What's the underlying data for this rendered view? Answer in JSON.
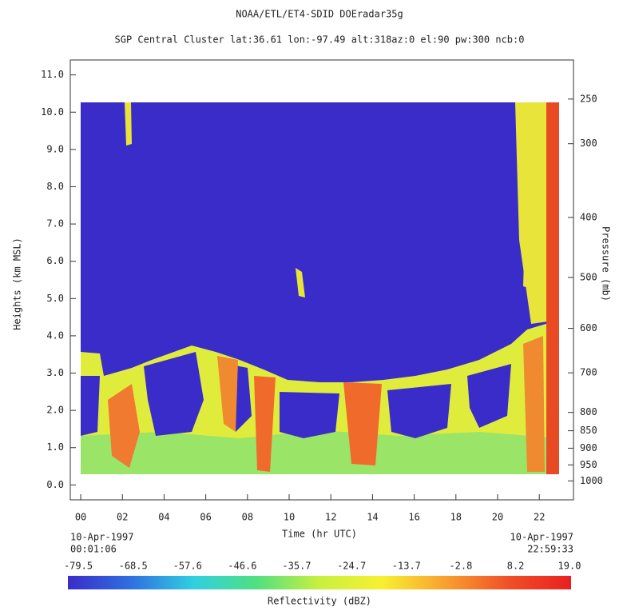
{
  "chart_data": {
    "type": "heatmap",
    "title": "NOAA/ETL/ET4-SDID   DOEradar35g",
    "subtitle": "SGP Central Cluster lat:36.61 lon:-97.49 alt:318az:0 el:90 pw:300 ncb:0",
    "xlabel": "Time (hr UTC)",
    "ylabel": "Heights (km MSL)",
    "y2label": "Pressure (mb)",
    "xlim": [
      -0.5,
      23.64
    ],
    "xticks": [
      {
        "value": 0,
        "label": "00"
      },
      {
        "value": 2,
        "label": "02"
      },
      {
        "value": 4,
        "label": "04"
      },
      {
        "value": 6,
        "label": "06"
      },
      {
        "value": 8,
        "label": "08"
      },
      10,
      12,
      14,
      16,
      18,
      20,
      22
    ],
    "ylim": [
      -0.4,
      11.4
    ],
    "yticks": [
      {
        "value": 0,
        "label": "0.0"
      },
      {
        "value": 1,
        "label": "1.0"
      },
      {
        "value": 2,
        "label": "2.0"
      },
      {
        "value": 3,
        "label": "3.0"
      },
      {
        "value": 4,
        "label": "4.0"
      },
      {
        "value": 5,
        "label": "5.0"
      },
      {
        "value": 6,
        "label": "6.0"
      },
      {
        "value": 7,
        "label": "7.0"
      },
      {
        "value": 8,
        "label": "8.0"
      },
      {
        "value": 9,
        "label": "9.0"
      },
      {
        "value": 10,
        "label": "10.0"
      },
      {
        "value": 11,
        "label": "11.0"
      }
    ],
    "y2scale": "pressure",
    "y2lim": [
      1062,
      212
    ],
    "y2ticks": [
      250,
      300,
      400,
      500,
      600,
      700,
      800,
      850,
      900,
      950,
      1000
    ],
    "start_date": "10-Apr-1997",
    "start_time": "00:01:06",
    "end_date": "10-Apr-1997",
    "end_time": "22:59:33",
    "colorbar": {
      "label": "Reflectivity (dBZ)",
      "clim": [
        -79.5,
        19.0
      ],
      "ticks": [
        -79.5,
        -68.5,
        -57.6,
        -46.6,
        -35.7,
        -24.7,
        -13.7,
        -2.8,
        8.2,
        {
          "value": 19.0,
          "label": "19.0"
        }
      ],
      "colormap": [
        "#3a2cc8",
        "#2f6fe0",
        "#30d0e0",
        "#50e080",
        "#c8f040",
        "#f8f030",
        "#f8a030",
        "#f05028",
        "#e82020"
      ]
    }
  }
}
